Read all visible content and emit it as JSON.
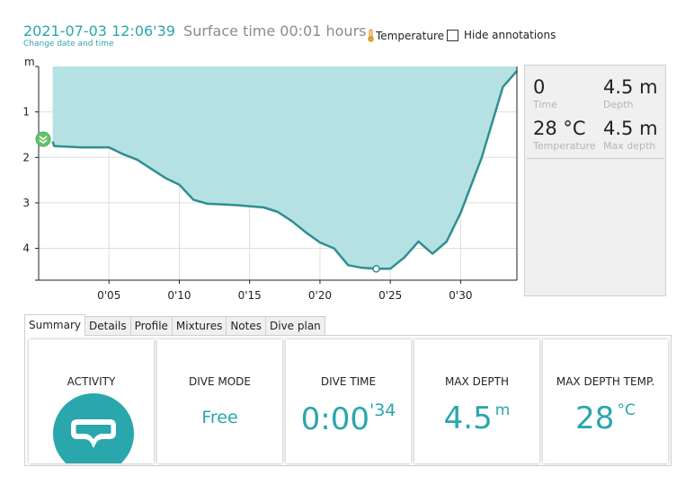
{
  "header": {
    "datetime": "2021-07-03 12:06'39",
    "surface_time": "Surface time 00:01 hours",
    "change_link": "Change date and time",
    "temperature_toggle": "Temperature",
    "hide_annotations": "Hide annotations"
  },
  "chart_data": {
    "type": "area",
    "ylabel": "m",
    "y_reversed": true,
    "ylim": [
      0,
      4.7
    ],
    "xlim": [
      0,
      34
    ],
    "y_ticks": [
      "1",
      "2",
      "3",
      "4"
    ],
    "x_ticks": [
      "0'05",
      "0'10",
      "0'15",
      "0'20",
      "0'25",
      "0'30"
    ],
    "grid": true,
    "series": [
      {
        "x": [
          1,
          1.1,
          3,
          5,
          6,
          7,
          9,
          10,
          11,
          12,
          14,
          16,
          17,
          18,
          19,
          20,
          21,
          22,
          23,
          24,
          25,
          26,
          27,
          28,
          29,
          30,
          31.5,
          33,
          34
        ],
        "y": [
          1.65,
          1.75,
          1.78,
          1.78,
          1.93,
          2.05,
          2.45,
          2.6,
          2.93,
          3.02,
          3.05,
          3.1,
          3.2,
          3.4,
          3.65,
          3.87,
          4.0,
          4.37,
          4.43,
          4.45,
          4.45,
          4.2,
          3.85,
          4.12,
          3.85,
          3.22,
          2.0,
          0.45,
          0.1
        ],
        "color": "#2e8f91",
        "fill": "#b6e1e3"
      }
    ],
    "marker": {
      "x": 24,
      "y": 4.45
    },
    "accent": "#2aa6ad"
  },
  "info_panel": {
    "time_value": "0",
    "time_label": "Time",
    "depth_value": "4.5 m",
    "depth_label": "Depth",
    "temperature_value": "28 °C",
    "temperature_label": "Temperature",
    "max_depth_value": "4.5 m",
    "max_depth_label": "Max depth"
  },
  "tabs": [
    "Summary",
    "Details",
    "Profile",
    "Mixtures",
    "Notes",
    "Dive plan"
  ],
  "summary": {
    "activity_title": "ACTIVITY",
    "activity_icon": "diving-mask-icon",
    "dive_mode_title": "DIVE MODE",
    "dive_mode_value": "Free",
    "dive_time_title": "DIVE TIME",
    "dive_time_main": "0:00",
    "dive_time_seconds": "'34",
    "max_depth_title": "MAX DEPTH",
    "max_depth_value": "4.5",
    "max_depth_unit": "m",
    "max_depth_temp_title": "MAX DEPTH TEMP.",
    "max_depth_temp_value": "28",
    "max_depth_temp_unit": "°C"
  }
}
